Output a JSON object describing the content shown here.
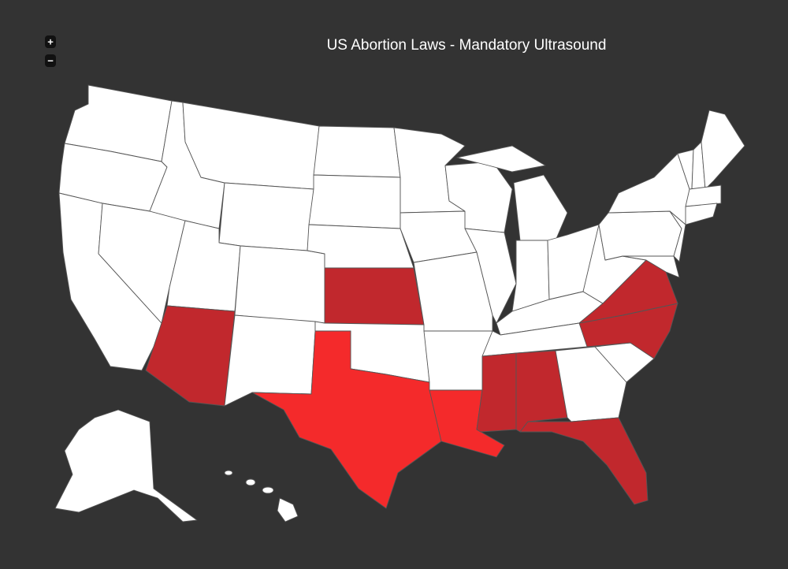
{
  "title": "US Abortion Laws - Mandatory Ultrasound",
  "zoom_controls": {
    "zoom_in": "+",
    "zoom_out": "−"
  }
}
